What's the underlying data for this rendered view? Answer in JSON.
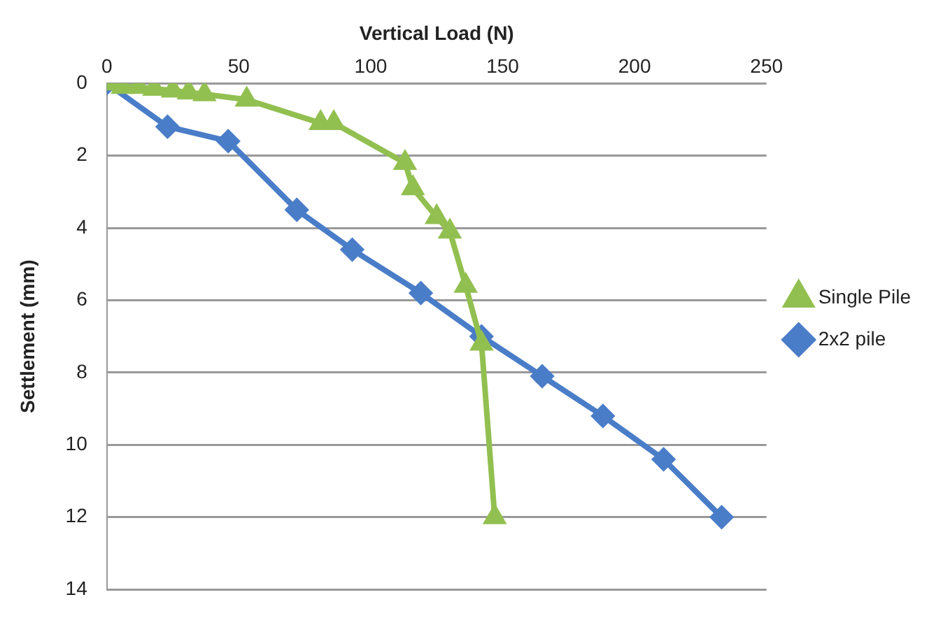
{
  "chart_data": {
    "type": "line",
    "xlabel": "Vertical Load (N)",
    "ylabel": "Settlement (mm)",
    "xlim": [
      0,
      250
    ],
    "xticks": [
      0,
      50,
      100,
      150,
      200,
      250
    ],
    "ylim": [
      14,
      0
    ],
    "yticks": [
      0,
      2,
      4,
      6,
      8,
      10,
      12,
      14
    ],
    "grid": "y",
    "legend": "right",
    "series": [
      {
        "name": "Single Pile",
        "color": "#92c050",
        "marker": "triangle",
        "x": [
          0,
          6,
          12,
          18,
          25,
          31,
          37,
          53,
          81,
          86,
          113,
          116,
          125,
          130,
          136,
          142,
          147
        ],
        "values": [
          0,
          0.1,
          0.1,
          0.15,
          0.2,
          0.25,
          0.3,
          0.45,
          1.1,
          1.1,
          2.2,
          2.9,
          3.7,
          4.1,
          5.6,
          7.2,
          12
        ]
      },
      {
        "name": "2x2 pile",
        "color": "#4a7dc8",
        "marker": "diamond",
        "x": [
          0,
          23,
          46,
          72,
          93,
          119,
          142,
          165,
          188,
          211,
          233
        ],
        "values": [
          0,
          1.2,
          1.6,
          3.5,
          4.6,
          5.8,
          7.0,
          8.1,
          9.2,
          10.4,
          12
        ]
      }
    ]
  }
}
